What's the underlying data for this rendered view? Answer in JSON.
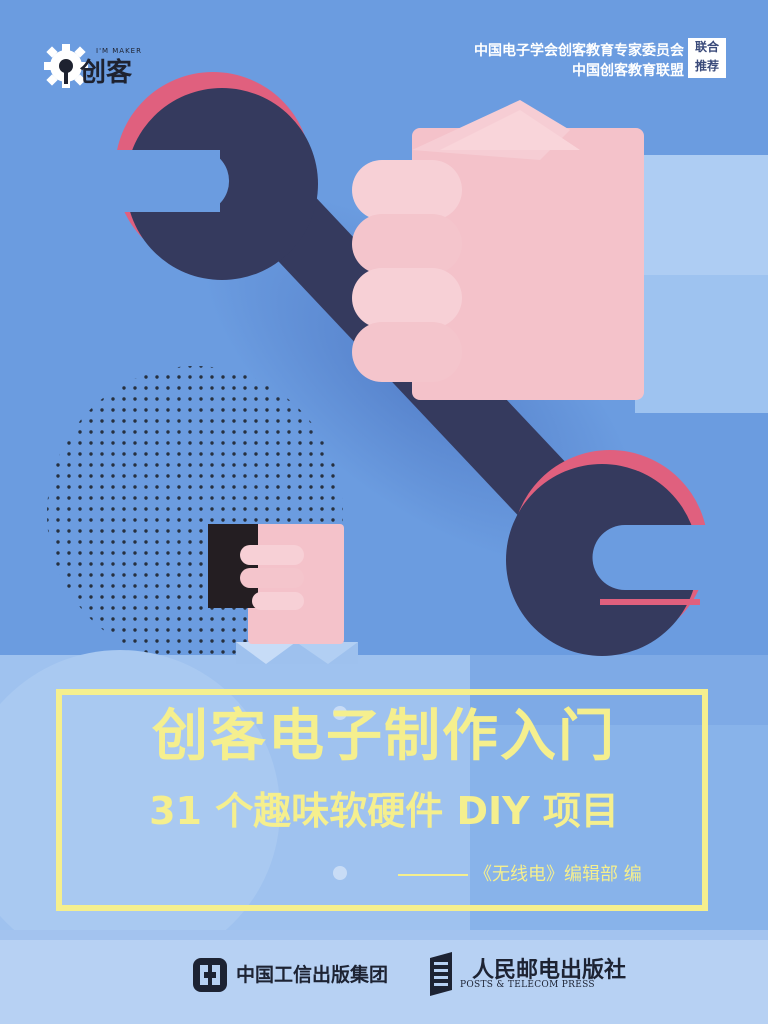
{
  "logo": {
    "name": "创客",
    "tagline": "I'M MAKER",
    "icon": "gear-icon"
  },
  "endorsement": {
    "line1": "中国电子学会创客教育专家委员会",
    "line2": "中国创客教育联盟",
    "badge_line1": "联合",
    "badge_line2": "推荐"
  },
  "title": {
    "main": "创客电子制作入门",
    "sub": "31 个趣味软硬件 DIY 项目",
    "editor": "《无线电》编辑部 编"
  },
  "publishers": {
    "group": "中国工信出版集团",
    "press": "人民邮电出版社",
    "press_en": "POSTS & TELECOM PRESS"
  },
  "colors": {
    "background": "#6b9ce0",
    "title": "#f5ef8e",
    "wrench": "#353a5e",
    "wrench_accent": "#e0607e",
    "hand": "#f5c6cc",
    "sleeve": "#a5c8f0"
  }
}
